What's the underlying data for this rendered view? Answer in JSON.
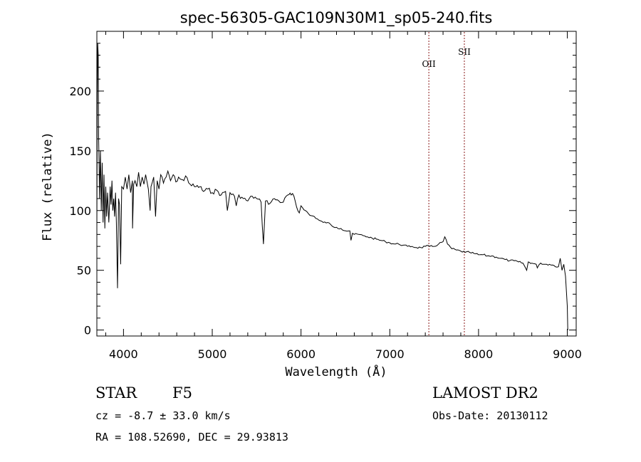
{
  "chart_data": {
    "type": "line",
    "title": "spec-56305-GAC109N30M1_sp05-240.fits",
    "xlabel": "Wavelength (Å)",
    "ylabel": "Flux (relative)",
    "xlim": [
      3700,
      9100
    ],
    "ylim": [
      -5,
      250
    ],
    "grid": false,
    "x_ticks": [
      4000,
      5000,
      6000,
      7000,
      8000,
      9000
    ],
    "y_ticks": [
      0,
      50,
      100,
      150,
      200
    ],
    "x_tick_labels": [
      "4000",
      "5000",
      "6000",
      "7000",
      "8000",
      "9000"
    ],
    "y_tick_labels": [
      "0",
      "50",
      "100",
      "150",
      "200"
    ],
    "series": [
      {
        "x": [
          3700,
          3705,
          3710,
          3715,
          3720,
          3725,
          3730,
          3740,
          3750,
          3760,
          3770,
          3780,
          3790,
          3800,
          3810,
          3820,
          3835,
          3850,
          3860,
          3870,
          3880,
          3890,
          3900,
          3910,
          3920,
          3933,
          3945,
          3955,
          3968,
          3980,
          4000,
          4020,
          4040,
          4060,
          4080,
          4100,
          4102,
          4115,
          4130,
          4150,
          4170,
          4190,
          4210,
          4230,
          4250,
          4280,
          4300,
          4310,
          4340,
          4361,
          4380,
          4400,
          4420,
          4450,
          4480,
          4500,
          4530,
          4560,
          4590,
          4620,
          4650,
          4680,
          4700,
          4750,
          4800,
          4861,
          4900,
          4950,
          5000,
          5050,
          5100,
          5150,
          5170,
          5200,
          5250,
          5270,
          5300,
          5350,
          5400,
          5450,
          5500,
          5550,
          5577,
          5600,
          5650,
          5700,
          5750,
          5800,
          5850,
          5890,
          5920,
          5950,
          5980,
          6000,
          6050,
          6100,
          6150,
          6200,
          6250,
          6300,
          6350,
          6400,
          6450,
          6500,
          6550,
          6563,
          6580,
          6600,
          6650,
          6700,
          6750,
          6800,
          6850,
          6900,
          6950,
          7000,
          7050,
          7100,
          7150,
          7200,
          7250,
          7300,
          7350,
          7400,
          7450,
          7500,
          7550,
          7600,
          7620,
          7650,
          7700,
          7750,
          7800,
          7850,
          7900,
          7950,
          8000,
          8050,
          8100,
          8150,
          8200,
          8250,
          8300,
          8350,
          8400,
          8450,
          8500,
          8542,
          8560,
          8600,
          8650,
          8662,
          8700,
          8750,
          8800,
          8850,
          8900,
          8920,
          8940,
          8960,
          8980,
          9000,
          9005
        ],
        "y": [
          85,
          200,
          240,
          230,
          160,
          140,
          110,
          150,
          100,
          140,
          90,
          130,
          85,
          120,
          95,
          115,
          90,
          120,
          105,
          125,
          100,
          110,
          95,
          115,
          90,
          35,
          110,
          105,
          55,
          120,
          118,
          128,
          118,
          130,
          115,
          125,
          85,
          122,
          125,
          120,
          132,
          120,
          128,
          122,
          130,
          118,
          100,
          120,
          128,
          95,
          125,
          118,
          130,
          123,
          128,
          133,
          125,
          130,
          124,
          128,
          126,
          125,
          129,
          122,
          120,
          120,
          116,
          118,
          115,
          117,
          113,
          116,
          100,
          115,
          112,
          104,
          113,
          110,
          108,
          112,
          110,
          107,
          72,
          108,
          106,
          110,
          108,
          107,
          113,
          113,
          112,
          103,
          98,
          104,
          100,
          96,
          95,
          92,
          90,
          90,
          87,
          86,
          85,
          83,
          83,
          75,
          81,
          80,
          80,
          79,
          78,
          77,
          76,
          75,
          74,
          73,
          72,
          72,
          71,
          70,
          70,
          69,
          69,
          70,
          70,
          70,
          72,
          74,
          78,
          72,
          68,
          67,
          66,
          65,
          65,
          64,
          63,
          63,
          62,
          62,
          61,
          60,
          59,
          58,
          58,
          57,
          56,
          50,
          57,
          56,
          55,
          52,
          56,
          55,
          55,
          54,
          53,
          60,
          50,
          55,
          45,
          20,
          0
        ]
      }
    ],
    "emission_lines": [
      {
        "name": "OII",
        "x": 7440
      },
      {
        "name": "SII",
        "x": 7840
      }
    ]
  },
  "info": {
    "object_class": "STAR",
    "subclass": "F5",
    "redshift_text": "cz = -8.7 ± 33.0 km/s",
    "coords_text": "RA = 108.52690, DEC =  29.93813",
    "survey": "LAMOST DR2",
    "obs_date": "Obs-Date: 20130112"
  },
  "colors": {
    "axis": "#000000",
    "spectrum": "#000000",
    "marker_line": "#8b1a1a"
  }
}
